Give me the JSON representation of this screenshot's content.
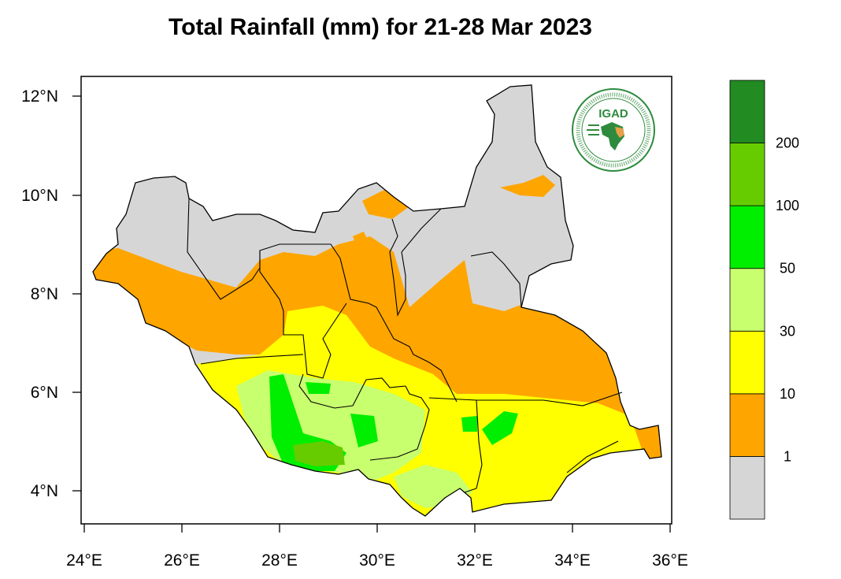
{
  "title": "Total Rainfall (mm) for 21-28 Mar 2023",
  "map": {
    "lon_ticks": [
      "24°E",
      "26°E",
      "28°E",
      "30°E",
      "32°E",
      "34°E",
      "36°E"
    ],
    "lat_ticks": [
      "12°N",
      "10°N",
      "8°N",
      "6°N",
      "4°N"
    ],
    "logo_text": "IGAD"
  },
  "legend": {
    "breaks": [
      "1",
      "10",
      "30",
      "50",
      "100",
      "200"
    ],
    "colors": [
      "#d6d6d6",
      "#ffa500",
      "#ffff00",
      "#c8ff6e",
      "#00ee00",
      "#66cc00",
      "#228b22"
    ]
  }
}
